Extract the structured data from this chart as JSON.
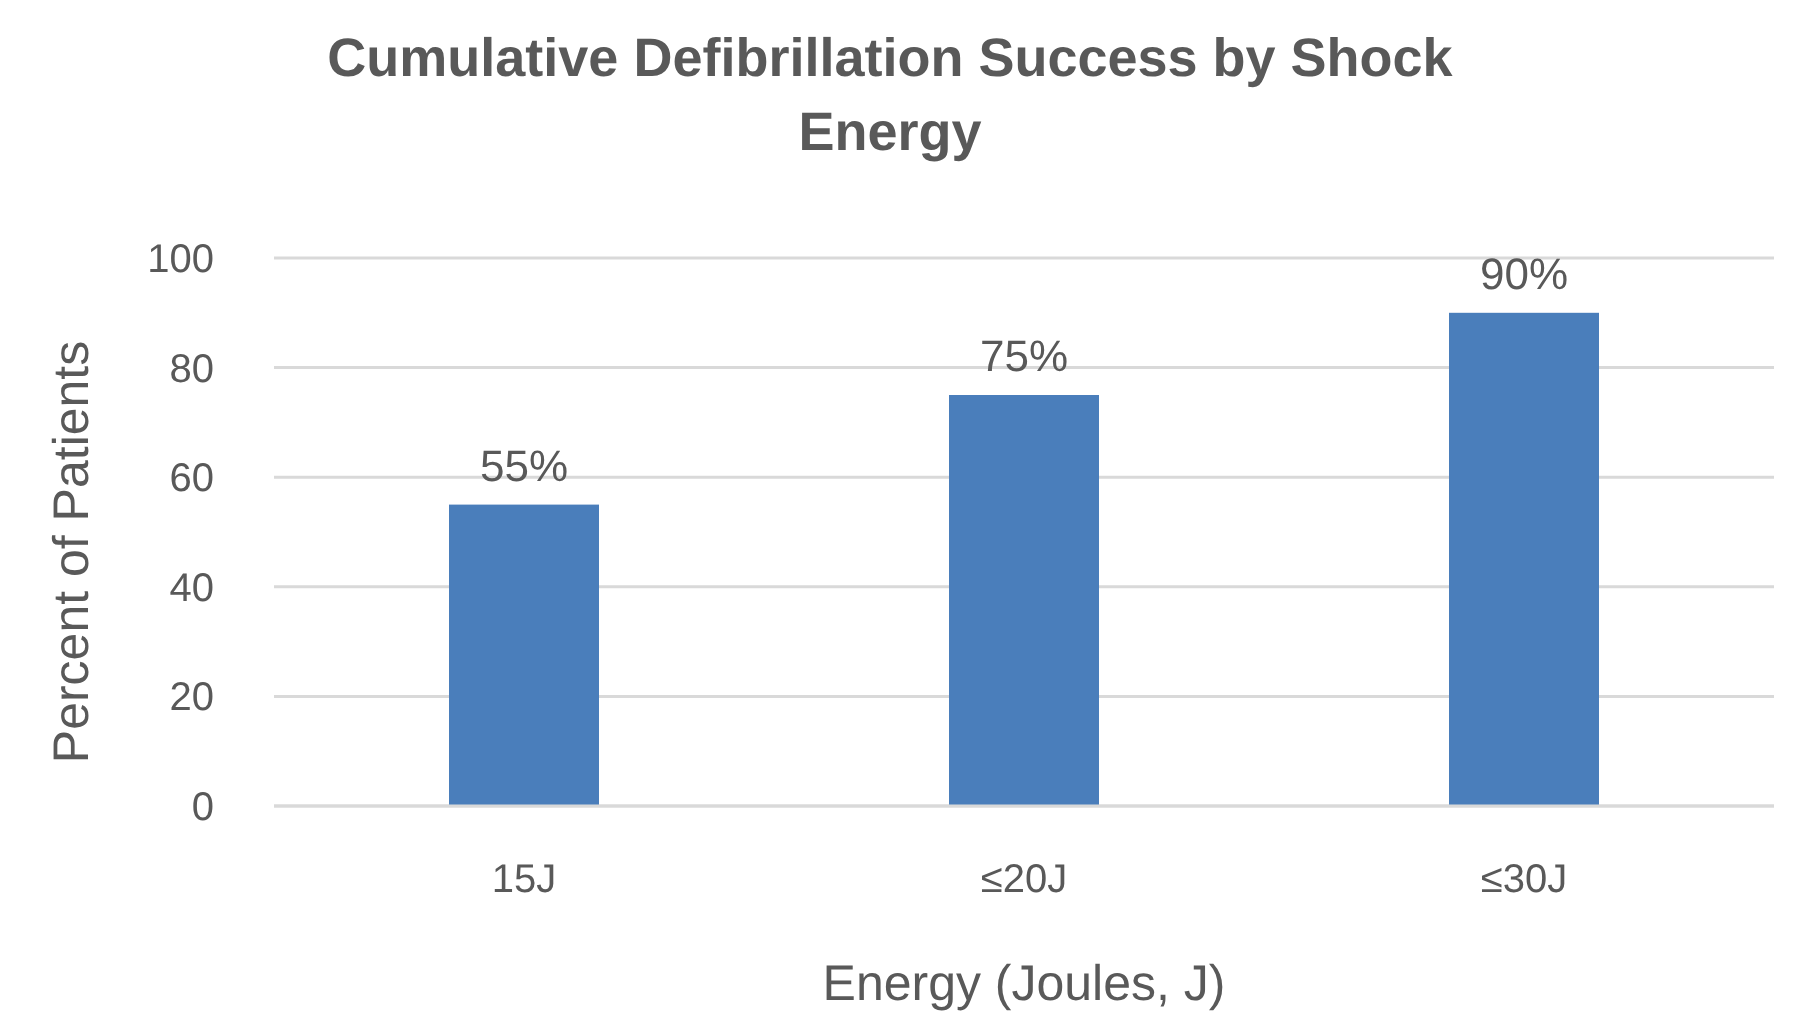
{
  "chart_data": {
    "type": "bar",
    "title": "Cumulative Defibrillation Success by Shock Energy",
    "xlabel": "Energy (Joules, J)",
    "ylabel": "Percent of Patients",
    "categories": [
      "15J",
      "≤20J",
      "≤30J"
    ],
    "values": [
      55,
      75,
      90
    ],
    "value_labels": [
      "55%",
      "75%",
      "90%"
    ],
    "color": "#4a7ebb",
    "ylim": [
      0,
      100
    ],
    "yticks": [
      0,
      20,
      40,
      60,
      80,
      100
    ],
    "grid": "y"
  }
}
